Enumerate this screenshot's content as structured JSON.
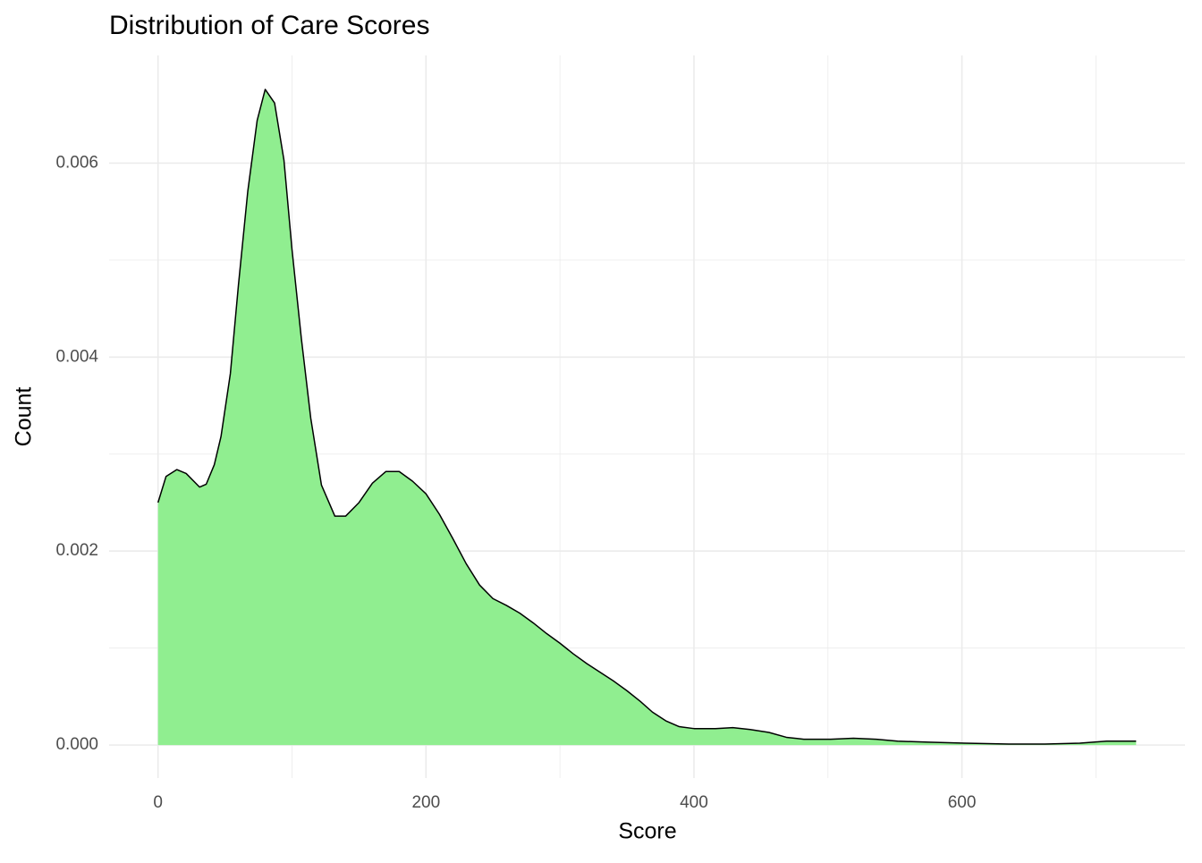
{
  "chart_data": {
    "type": "density",
    "title": "Distribution of Care Scores",
    "x_label": "Score",
    "y_label": "Count",
    "fill": "#90ee90",
    "line_color": "#000000",
    "x": [
      0,
      6,
      14,
      21,
      31,
      36,
      42,
      47,
      54,
      60,
      67,
      74,
      80,
      87,
      94,
      100,
      107,
      114,
      122,
      132,
      140,
      150,
      160,
      170,
      180,
      190,
      200,
      210,
      220,
      230,
      240,
      250,
      260,
      270,
      280,
      290,
      300,
      310,
      320,
      330,
      340,
      350,
      360,
      369,
      379,
      389,
      400,
      416,
      429,
      442,
      456,
      469,
      482,
      502,
      519,
      536,
      552,
      575,
      602,
      635,
      662,
      688,
      708,
      730
    ],
    "values": [
      0.0025,
      0.00277,
      0.00284,
      0.0028,
      0.00266,
      0.00269,
      0.00289,
      0.00318,
      0.00383,
      0.00474,
      0.00571,
      0.00644,
      0.00676,
      0.00662,
      0.00603,
      0.00511,
      0.00419,
      0.00337,
      0.00268,
      0.00236,
      0.00236,
      0.0025,
      0.0027,
      0.00282,
      0.00282,
      0.00272,
      0.00259,
      0.00238,
      0.00213,
      0.00187,
      0.00165,
      0.00151,
      0.00144,
      0.00136,
      0.00126,
      0.00115,
      0.00105,
      0.00094,
      0.00084,
      0.00075,
      0.00066,
      0.00056,
      0.00045,
      0.00034,
      0.00025,
      0.00019,
      0.00017,
      0.00017,
      0.00018,
      0.00016,
      0.00013,
      8e-05,
      6e-05,
      6e-05,
      7e-05,
      6e-05,
      4e-05,
      3e-05,
      2e-05,
      1e-05,
      1e-05,
      2e-05,
      4e-05,
      4e-05
    ],
    "xlim": [
      -36.5,
      766.5
    ],
    "ylim": [
      -0.00034,
      0.00711
    ],
    "xticks": [
      0,
      200,
      400,
      600
    ],
    "yticks": [
      {
        "value": 0,
        "label": "0.000"
      },
      {
        "value": 0.002,
        "label": "0.002"
      },
      {
        "value": 0.004,
        "label": "0.004"
      },
      {
        "value": 0.006,
        "label": "0.006"
      }
    ],
    "xminorticks": [
      100,
      300,
      500,
      700
    ],
    "yminorticks": [
      0.001,
      0.003,
      0.005
    ],
    "grid": true
  }
}
